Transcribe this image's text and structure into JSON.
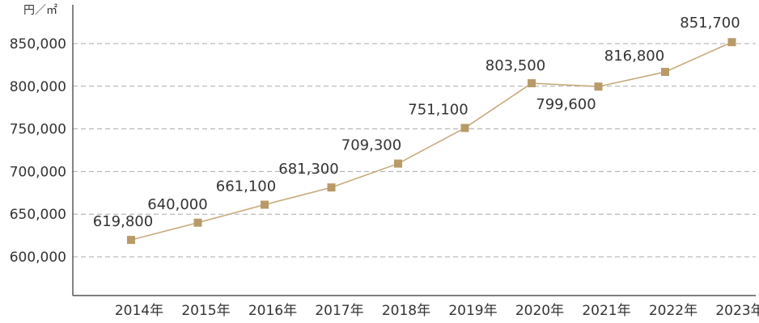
{
  "chart_data": {
    "type": "line",
    "unit_label": "円／㎡",
    "categories": [
      "2014年",
      "2015年",
      "2016年",
      "2017年",
      "2018年",
      "2019年",
      "2020年",
      "2021年",
      "2022年",
      "2023年"
    ],
    "series": [
      {
        "values": [
          619800,
          640000,
          661100,
          681300,
          709300,
          751100,
          803500,
          799600,
          816800,
          851700
        ],
        "labels": [
          "619,800",
          "640,000",
          "661,100",
          "681,300",
          "709,300",
          "751,100",
          "803,500",
          "799,600",
          "816,800",
          "851,700"
        ]
      }
    ],
    "yticks": [
      600000,
      650000,
      700000,
      750000,
      800000,
      850000
    ],
    "ytick_labels": [
      "600,000",
      "650,000",
      "700,000",
      "750,000",
      "800,000",
      "850,000"
    ],
    "ylim": [
      550000,
      885000
    ],
    "grid": true,
    "legend": "none",
    "colors": {
      "line": "#c7a97c",
      "marker": "#b89a68",
      "axis": "#333333",
      "grid": "#aaaaaa"
    }
  }
}
